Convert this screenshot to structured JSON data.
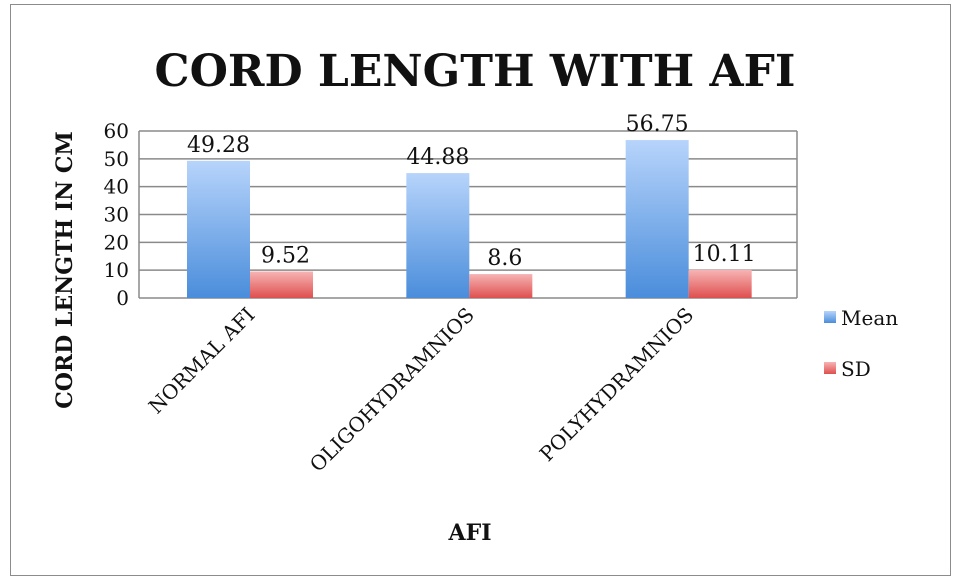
{
  "chart_data": {
    "type": "bar",
    "title": "CORD LENGTH WITH AFI",
    "xlabel": "AFI",
    "ylabel": "CORD LENGTH IN CM",
    "categories": [
      "NORMAL AFI",
      "OLIGOHYDRAMNIOS",
      "POLYHYDRAMNIOS"
    ],
    "series": [
      {
        "name": "Mean",
        "values": [
          49.28,
          44.88,
          56.75
        ],
        "labels": [
          "49.28",
          "44.88",
          "56.75"
        ],
        "color": "#6aa7ec"
      },
      {
        "name": "SD",
        "values": [
          9.52,
          8.6,
          10.11
        ],
        "labels": [
          "9.52",
          "8.6",
          "10.11"
        ],
        "color": "#e35a5a"
      }
    ],
    "ylim": [
      0,
      60
    ],
    "yticks": [
      "0",
      "10",
      "20",
      "30",
      "40",
      "50",
      "60"
    ],
    "grid": true,
    "legend": "right"
  }
}
